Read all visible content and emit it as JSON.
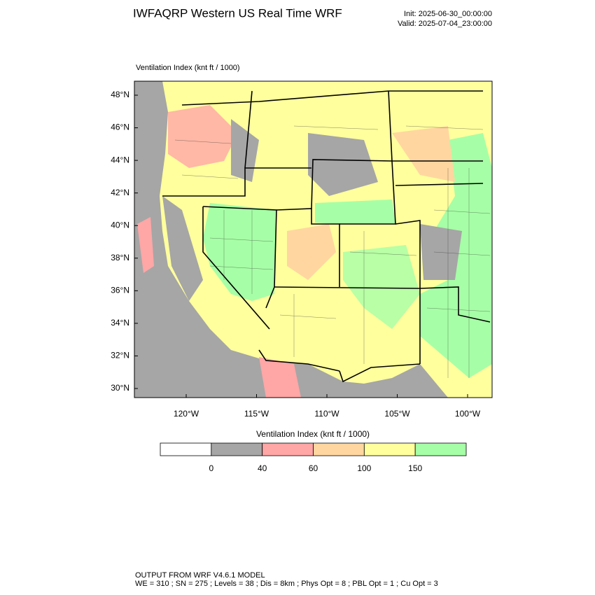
{
  "header": {
    "title": "IWFAQRP Western US Real Time WRF",
    "init": "Init: 2025-06-30_00:00:00",
    "valid": "Valid: 2025-07-04_23:00:00"
  },
  "map": {
    "subtitle": "Ventilation Index   (knt ft / 1000)",
    "lat_labels": [
      "48°N",
      "46°N",
      "44°N",
      "42°N",
      "40°N",
      "38°N",
      "36°N",
      "34°N",
      "32°N",
      "30°N"
    ],
    "lon_labels": [
      "120°W",
      "115°W",
      "110°W",
      "105°W",
      "100°W"
    ]
  },
  "colorbar": {
    "title": "Ventilation Index   (knt ft / 1000)",
    "colors": [
      "#ffffff",
      "#a6a6a6",
      "#ffa6a6",
      "#ffd6a0",
      "#ffff9e",
      "#a6ffa6"
    ],
    "labels": [
      0,
      40,
      60,
      100,
      150
    ]
  },
  "footer": {
    "line1": "OUTPUT FROM WRF V4.6.1 MODEL",
    "line2": "WE = 310 ; SN = 275 ; Levels = 38 ; Dis = 8km ; Phys Opt = 8 ; PBL Opt = 1 ; Cu Opt = 3"
  }
}
